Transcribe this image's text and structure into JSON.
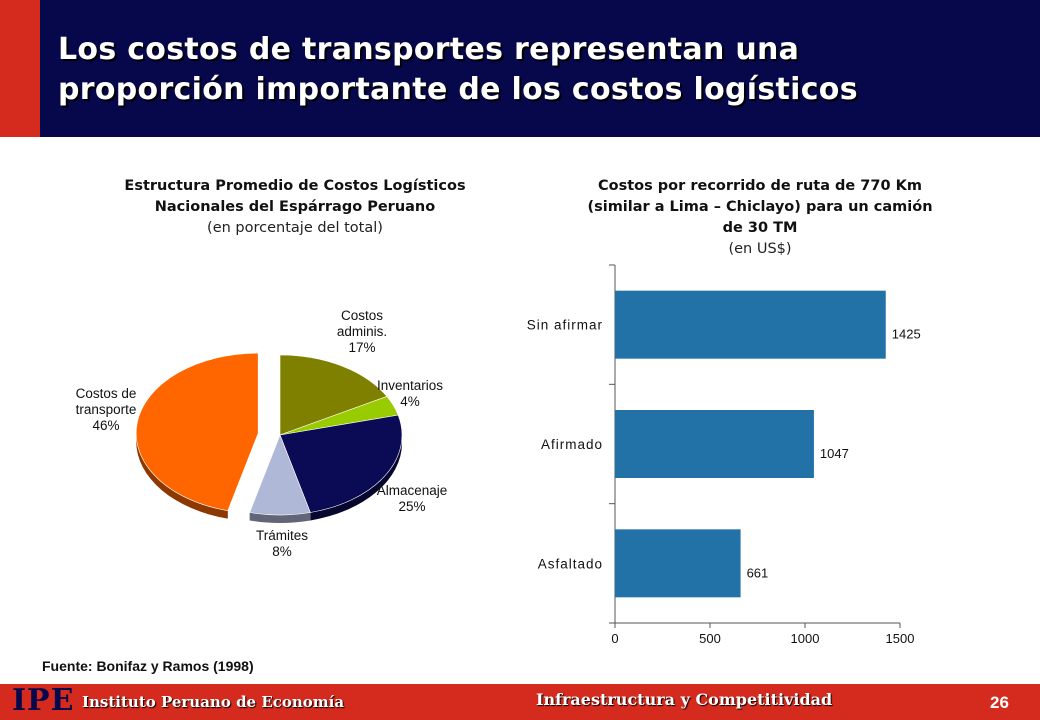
{
  "slide": {
    "title_line1": "Los costos de transportes representan una",
    "title_line2": "proporción importante de los costos logísticos",
    "source": "Fuente: Bonifaz y Ramos (1998)"
  },
  "footer": {
    "logo": "IPE",
    "org": "Instituto Peruano de Economía",
    "section": "Infraestructura y Competitividad",
    "page": "26"
  },
  "chart_data": [
    {
      "type": "pie",
      "title": "Estructura Promedio de Costos Logísticos Nacionales del Espárrago Peruano",
      "subtitle": "(en porcentaje del total)",
      "slices": [
        {
          "name": "Costos adminis.",
          "value": 17,
          "label": "17%",
          "color": "#808000"
        },
        {
          "name": "Inventarios",
          "value": 4,
          "label": "4%",
          "color": "#99cc00"
        },
        {
          "name": "Almacenaje",
          "value": 25,
          "label": "25%",
          "color": "#0b0b55"
        },
        {
          "name": "Trámites",
          "value": 8,
          "label": "8%",
          "color": "#b0b8d8"
        },
        {
          "name": "Costos de transporte",
          "value": 46,
          "label": "46%",
          "color": "#ff6600"
        }
      ],
      "exploded": "Costos de transporte"
    },
    {
      "type": "bar",
      "orientation": "horizontal",
      "title": "Costos por recorrido de ruta de 770 Km (similar a Lima – Chiclayo) para un camión de 30 TM",
      "subtitle": "(en US$)",
      "categories": [
        "Sin afirmar",
        "Afirmado",
        "Asfaltado"
      ],
      "values": [
        1425,
        1047,
        661
      ],
      "value_labels": [
        "1425",
        "1047",
        "661"
      ],
      "xlim": [
        0,
        1500
      ],
      "xticks": [
        "0",
        "500",
        "1000",
        "1500"
      ],
      "bar_color": "#2272a8",
      "grid": false
    }
  ]
}
